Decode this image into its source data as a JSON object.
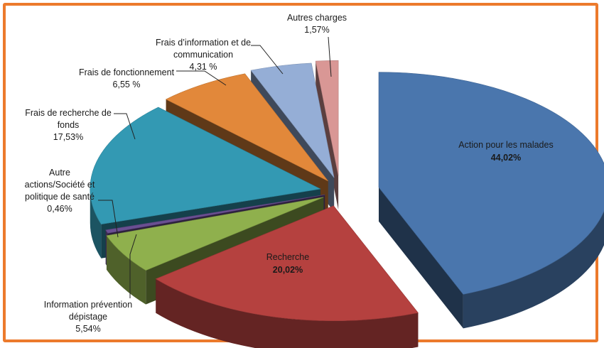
{
  "chart_data": {
    "type": "pie",
    "title": "",
    "slices": [
      {
        "label": "Action pour les malades",
        "value": 44.02,
        "value_text": "44,02%",
        "color": "#4a76ad"
      },
      {
        "label": "Recherche",
        "value": 20.02,
        "value_text": "20,02%",
        "color": "#b5413f"
      },
      {
        "label": "Information prévention dépistage",
        "value": 5.54,
        "value_text": "5,54%",
        "color": "#8fb04d"
      },
      {
        "label": "Autre actions/Société et politique de santé",
        "value": 0.46,
        "value_text": "0,46%",
        "color": "#6a4f92"
      },
      {
        "label": "Frais de recherche de fonds",
        "value": 17.53,
        "value_text": "17,53%",
        "color": "#3399b3"
      },
      {
        "label": "Frais de fonctionnement",
        "value": 6.55,
        "value_text": "6,55 %",
        "color": "#e2883a"
      },
      {
        "label": "Frais d'information et de communication",
        "value": 4.31,
        "value_text": "4,31 %",
        "color": "#95aed6"
      },
      {
        "label": "Autres charges",
        "value": 1.57,
        "value_text": "1,57%",
        "color": "#d99795"
      }
    ],
    "label_lines": {
      "action": [
        "Action pour les malades",
        "44,02%"
      ],
      "recherche": [
        "Recherche",
        "20,02%"
      ],
      "info_prev": [
        "Information prévention",
        "dépistage",
        "5,54%"
      ],
      "autre_actions": [
        "Autre",
        "actions/Société et",
        "politique de santé",
        "0,46%"
      ],
      "recherche_fonds": [
        "Frais de recherche de",
        "fonds",
        "17,53%"
      ],
      "fonctionnement": [
        "Frais de fonctionnement",
        "6,55 %"
      ],
      "information": [
        "Frais d’information et de",
        "communication",
        "4,31 %"
      ],
      "autres_charges": [
        "Autres charges",
        "1,57%"
      ]
    }
  }
}
